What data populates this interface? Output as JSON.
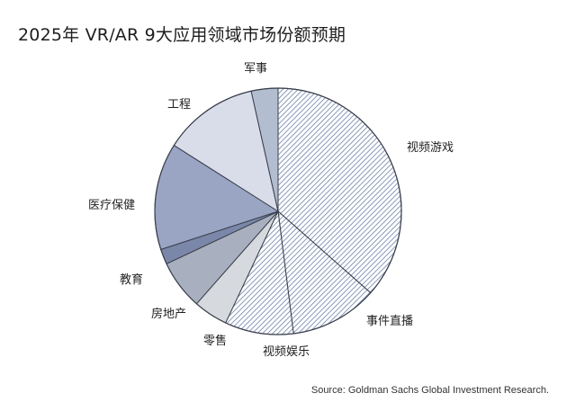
{
  "chart_data": {
    "type": "pie",
    "title": "2025年 VR/AR 9大应用领域市场份额预期",
    "source": "Source: Goldman Sachs Global Investment Research.",
    "slices": [
      {
        "label": "视频游戏",
        "value": 36.5,
        "color": "#8e9cc0",
        "pattern": "hatch"
      },
      {
        "label": "事件直播",
        "value": 11.5,
        "color": "#8e9cc0",
        "pattern": "hatch"
      },
      {
        "label": "视频娱乐",
        "value": 9.0,
        "color": "#8e9cc0",
        "pattern": "hatch"
      },
      {
        "label": "零售",
        "value": 4.5,
        "color": "#d6d9de",
        "pattern": "solid"
      },
      {
        "label": "房地产",
        "value": 6.5,
        "color": "#a8afbe",
        "pattern": "solid"
      },
      {
        "label": "教育",
        "value": 2.0,
        "color": "#7b87a8",
        "pattern": "solid"
      },
      {
        "label": "医疗保健",
        "value": 14.0,
        "color": "#9aa5c4",
        "pattern": "solid"
      },
      {
        "label": "工程",
        "value": 12.5,
        "color": "#d9dde9",
        "pattern": "solid"
      },
      {
        "label": "军事",
        "value": 3.5,
        "color": "#b3bdd0",
        "pattern": "solid"
      }
    ]
  }
}
